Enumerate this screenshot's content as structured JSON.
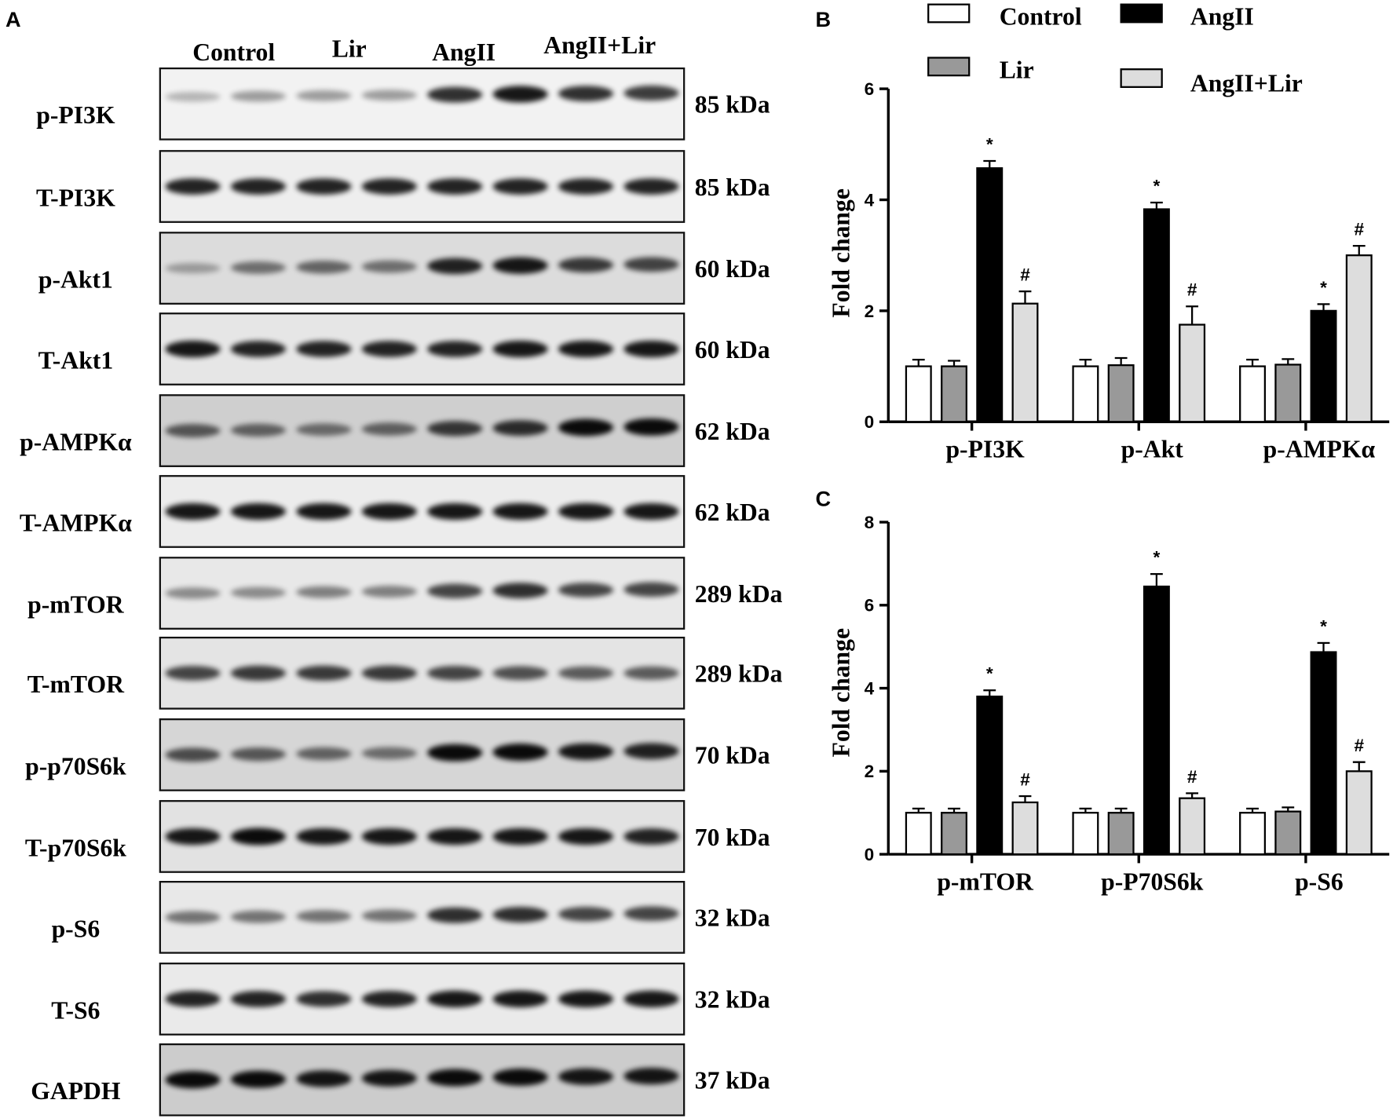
{
  "blot": {
    "panel": "A",
    "lanes": [
      "Control",
      "Lir",
      "AngII",
      "AngII+Lir"
    ],
    "rows": [
      {
        "name": "p-PI3K",
        "weight": "85 kDa"
      },
      {
        "name": "T-PI3K",
        "weight": "85 kDa"
      },
      {
        "name": "p-Akt1",
        "weight": "60 kDa"
      },
      {
        "name": "T-Akt1",
        "weight": "60 kDa"
      },
      {
        "name": "p-AMPKα",
        "weight": "62 kDa"
      },
      {
        "name": "T-AMPKα",
        "weight": "62 kDa"
      },
      {
        "name": "p-mTOR",
        "weight": "289 kDa"
      },
      {
        "name": "T-mTOR",
        "weight": "289 kDa"
      },
      {
        "name": "p-p70S6k",
        "weight": "70 kDa"
      },
      {
        "name": "T-p70S6k",
        "weight": "70 kDa"
      },
      {
        "name": "p-S6",
        "weight": "32 kDa"
      },
      {
        "name": "T-S6",
        "weight": "32 kDa"
      },
      {
        "name": "GAPDH",
        "weight": "37 kDa"
      }
    ]
  },
  "chart_data": [
    {
      "type": "bar",
      "panel": "B",
      "y_label": "Fold change",
      "legend": true,
      "categories": [
        "p-PI3K",
        "p-Akt",
        "p-AMPKα"
      ],
      "ylim": [
        0,
        6
      ],
      "yticks": [
        0,
        2,
        4,
        6
      ],
      "series": [
        {
          "name": "Control",
          "color": "#ffffff",
          "values": [
            1,
            1,
            1
          ],
          "errors": [
            0.12,
            0.12,
            0.12
          ]
        },
        {
          "name": "Lir",
          "color": "#999999",
          "values": [
            1,
            1.02,
            1.03
          ],
          "errors": [
            0.1,
            0.13,
            0.1
          ]
        },
        {
          "name": "AngII",
          "color": "#000000",
          "values": [
            4.57,
            3.83,
            2.0
          ],
          "errors": [
            0.13,
            0.12,
            0.12
          ],
          "markers": [
            "*",
            "*",
            "*"
          ]
        },
        {
          "name": "AngII+Lir",
          "color": "#dddddd",
          "values": [
            2.13,
            1.75,
            3.0
          ],
          "errors": [
            0.22,
            0.33,
            0.17
          ],
          "markers": [
            "#",
            "#",
            "#"
          ]
        }
      ]
    },
    {
      "type": "bar",
      "panel": "C",
      "y_label": "Fold change",
      "legend": false,
      "categories": [
        "p-mTOR",
        "p-P70S6k",
        "p-S6"
      ],
      "ylim": [
        0,
        8
      ],
      "yticks": [
        0,
        2,
        4,
        6,
        8
      ],
      "series": [
        {
          "color": "#ffffff",
          "values": [
            1,
            1,
            1
          ],
          "errors": [
            0.1,
            0.1,
            0.1
          ]
        },
        {
          "color": "#999999",
          "values": [
            1,
            1,
            1.03
          ],
          "errors": [
            0.1,
            0.1,
            0.1
          ]
        },
        {
          "color": "#000000",
          "values": [
            3.8,
            6.45,
            4.87
          ],
          "errors": [
            0.15,
            0.3,
            0.22
          ],
          "markers": [
            "*",
            "*",
            "*"
          ]
        },
        {
          "color": "#dddddd",
          "values": [
            1.25,
            1.35,
            2.0
          ],
          "errors": [
            0.15,
            0.12,
            0.22
          ],
          "markers": [
            "#",
            "#",
            "#"
          ]
        }
      ]
    }
  ]
}
